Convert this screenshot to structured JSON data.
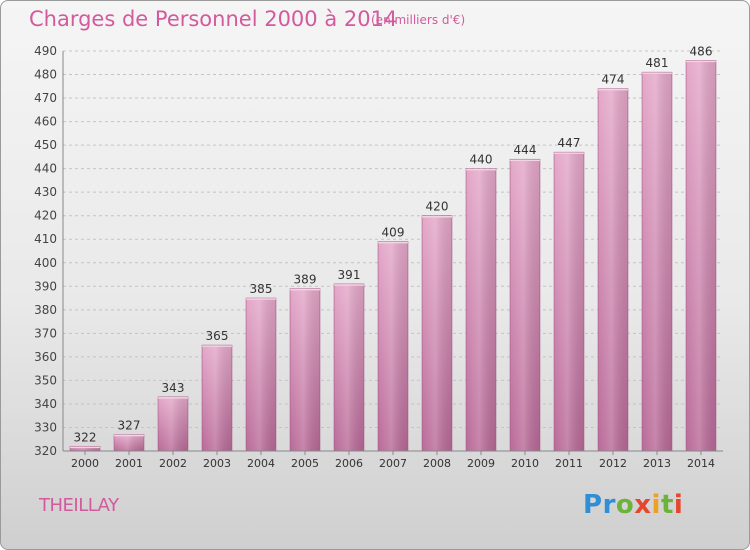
{
  "header": {
    "title": "Charges de Personnel 2000 à 2014",
    "subtitle": "(en milliers d'€)"
  },
  "footer": {
    "commune": "THEILLAY",
    "logo": "Proxiti"
  },
  "colors": {
    "accent": "#d35a9c",
    "bar": "#c96fa3"
  },
  "chart_data": {
    "type": "bar",
    "title": "Charges de Personnel 2000 à 2014",
    "subtitle": "(en milliers d'€)",
    "xlabel": "",
    "ylabel": "",
    "categories": [
      "2000",
      "2001",
      "2002",
      "2003",
      "2004",
      "2005",
      "2006",
      "2007",
      "2008",
      "2009",
      "2010",
      "2011",
      "2012",
      "2013",
      "2014"
    ],
    "values": [
      322,
      327,
      343,
      365,
      385,
      389,
      391,
      409,
      420,
      440,
      444,
      447,
      474,
      481,
      486
    ],
    "ylim": [
      320,
      490
    ],
    "yticks": [
      320,
      330,
      340,
      350,
      360,
      370,
      380,
      390,
      400,
      410,
      420,
      430,
      440,
      450,
      460,
      470,
      480,
      490
    ],
    "grid": true,
    "legend": "none"
  }
}
